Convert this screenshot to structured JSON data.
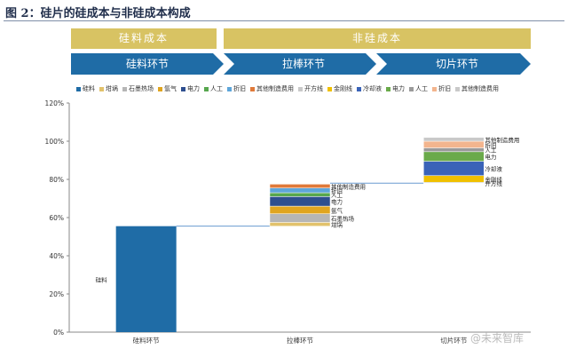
{
  "figure_title": "图 2：硅片的硅成本与非硅成本构成",
  "cost_headers": [
    {
      "label": "硅料成本",
      "color": "#d8c363"
    },
    {
      "label": "非硅成本",
      "color": "#d8c363"
    }
  ],
  "process_steps": [
    {
      "label": "硅料环节",
      "color": "#1f6ca6"
    },
    {
      "label": "拉棒环节",
      "color": "#1f6ca6"
    },
    {
      "label": "切片环节",
      "color": "#1f6ca6"
    }
  ],
  "legend": [
    {
      "label": "硅料",
      "color": "#1f6ca6"
    },
    {
      "label": "坩埚",
      "color": "#e2c26b"
    },
    {
      "label": "石墨热场",
      "color": "#b6b6b6"
    },
    {
      "label": "氩气",
      "color": "#e0a520"
    },
    {
      "label": "电力",
      "color": "#2e4f8f"
    },
    {
      "label": "人工",
      "color": "#57a74e"
    },
    {
      "label": "折旧",
      "color": "#5ea6da"
    },
    {
      "label": "其他制造费用",
      "color": "#e07a3a"
    },
    {
      "label": "开方线",
      "color": "#c9c9c9"
    },
    {
      "label": "金刚线",
      "color": "#f0c000"
    },
    {
      "label": "冷却液",
      "color": "#3a63b8"
    },
    {
      "label": "电力",
      "color": "#6aaa4a"
    },
    {
      "label": "人工",
      "color": "#9a9a9a"
    },
    {
      "label": "折旧",
      "color": "#f3b58e"
    },
    {
      "label": "其他制造费用",
      "color": "#c9c9c9"
    }
  ],
  "watermark": "@未来智库",
  "chart_data": {
    "type": "bar",
    "subtype": "waterfall",
    "categories": [
      "硅料环节",
      "拉棒环节",
      "切片环节"
    ],
    "ylim": [
      0,
      120
    ],
    "yticks": [
      "0%",
      "20%",
      "40%",
      "60%",
      "80%",
      "100%",
      "120%"
    ],
    "ytick_values": [
      0,
      20,
      40,
      60,
      80,
      100,
      120
    ],
    "grid": false,
    "legend_position": "top",
    "bars": [
      {
        "category": "硅料环节",
        "base": 0,
        "segments": [
          {
            "name": "硅料",
            "value": 55.5,
            "color": "#1f6ca6",
            "label": "硅料"
          }
        ]
      },
      {
        "category": "拉棒环节",
        "base": 55.5,
        "segments": [
          {
            "name": "坩埚",
            "value": 2.0,
            "color": "#e2c26b",
            "label": "坩埚"
          },
          {
            "name": "石墨热场",
            "value": 4.5,
            "color": "#b6b6b6",
            "label": "石墨热场"
          },
          {
            "name": "氩气",
            "value": 4.0,
            "color": "#e0a520",
            "label": "氩气"
          },
          {
            "name": "电力",
            "value": 5.0,
            "color": "#2e4f8f",
            "label": "电力"
          },
          {
            "name": "人工",
            "value": 2.0,
            "color": "#57a74e",
            "label": "人工"
          },
          {
            "name": "折旧",
            "value": 2.5,
            "color": "#5ea6da",
            "label": "折旧"
          },
          {
            "name": "其他制造费用",
            "value": 2.0,
            "color": "#e07a3a",
            "label": "其他制造费用"
          }
        ]
      },
      {
        "category": "切片环节",
        "base": 78.0,
        "segments": [
          {
            "name": "开方线",
            "value": 0.5,
            "color": "#c9c9c9",
            "label": "开方线"
          },
          {
            "name": "金刚线",
            "value": 3.5,
            "color": "#f0c000",
            "label": "金刚线"
          },
          {
            "name": "冷却液",
            "value": 7.5,
            "color": "#3a63b8",
            "label": "冷却液"
          },
          {
            "name": "电力",
            "value": 5.0,
            "color": "#6aaa4a",
            "label": "电力"
          },
          {
            "name": "人工",
            "value": 2.0,
            "color": "#9a9a9a",
            "label": "人工"
          },
          {
            "name": "折旧",
            "value": 3.5,
            "color": "#f3b58e",
            "label": "折旧"
          },
          {
            "name": "其他制造费用",
            "value": 2.0,
            "color": "#c9c9c9",
            "label": "其他制造费用"
          }
        ]
      }
    ],
    "connectors": [
      55.5,
      78.0
    ]
  }
}
